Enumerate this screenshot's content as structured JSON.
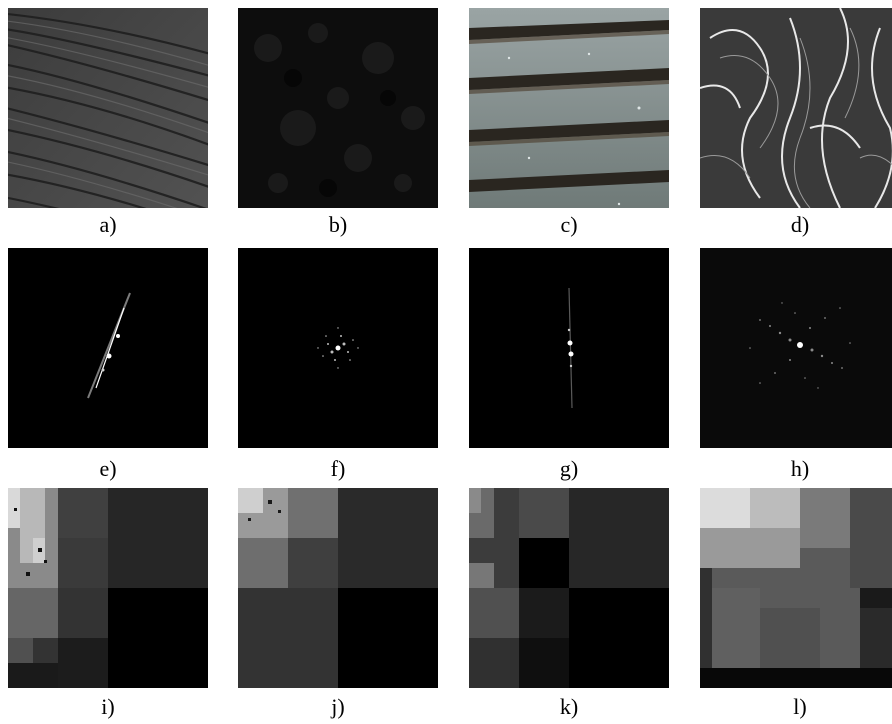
{
  "captions": {
    "a": "a)",
    "b": "b)",
    "c": "c)",
    "d": "d)",
    "e": "e)",
    "f": "f)",
    "g": "g)",
    "h": "h)",
    "i": "i)",
    "j": "j)",
    "k": "k)",
    "l": "l)"
  },
  "colors": {
    "background": "#ffffff",
    "caption": "#000000",
    "spectrum_bg": "#000000"
  }
}
